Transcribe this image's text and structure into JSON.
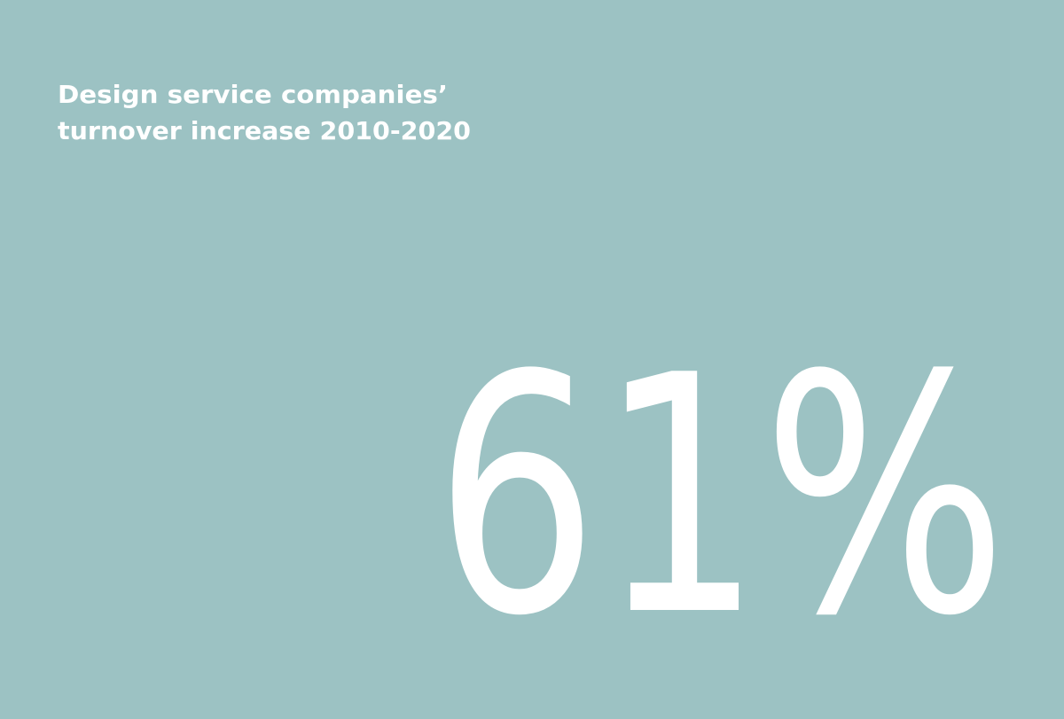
{
  "title": {
    "lines": [
      "Design service companies’",
      "turnover increase 2010-2020"
    ]
  },
  "stat": "61%"
}
